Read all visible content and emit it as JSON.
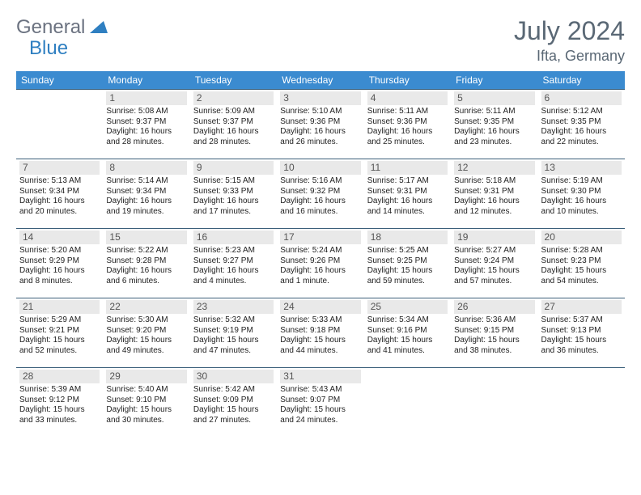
{
  "logo": {
    "part1": "General",
    "part2": "Blue"
  },
  "title": "July 2024",
  "location": "Ifta, Germany",
  "weekdays": [
    "Sunday",
    "Monday",
    "Tuesday",
    "Wednesday",
    "Thursday",
    "Friday",
    "Saturday"
  ],
  "colors": {
    "header_bg": "#3b8bd0",
    "header_text": "#ffffff",
    "cell_border": "#3b5f7a",
    "daynum_bg": "#e9e9e9",
    "logo_gray": "#6b7280",
    "logo_blue": "#2f7fc1",
    "title_color": "#5a6875"
  },
  "start_offset": 1,
  "days": [
    {
      "n": 1,
      "sr": "5:08 AM",
      "ss": "9:37 PM",
      "dl": "16 hours and 28 minutes."
    },
    {
      "n": 2,
      "sr": "5:09 AM",
      "ss": "9:37 PM",
      "dl": "16 hours and 28 minutes."
    },
    {
      "n": 3,
      "sr": "5:10 AM",
      "ss": "9:36 PM",
      "dl": "16 hours and 26 minutes."
    },
    {
      "n": 4,
      "sr": "5:11 AM",
      "ss": "9:36 PM",
      "dl": "16 hours and 25 minutes."
    },
    {
      "n": 5,
      "sr": "5:11 AM",
      "ss": "9:35 PM",
      "dl": "16 hours and 23 minutes."
    },
    {
      "n": 6,
      "sr": "5:12 AM",
      "ss": "9:35 PM",
      "dl": "16 hours and 22 minutes."
    },
    {
      "n": 7,
      "sr": "5:13 AM",
      "ss": "9:34 PM",
      "dl": "16 hours and 20 minutes."
    },
    {
      "n": 8,
      "sr": "5:14 AM",
      "ss": "9:34 PM",
      "dl": "16 hours and 19 minutes."
    },
    {
      "n": 9,
      "sr": "5:15 AM",
      "ss": "9:33 PM",
      "dl": "16 hours and 17 minutes."
    },
    {
      "n": 10,
      "sr": "5:16 AM",
      "ss": "9:32 PM",
      "dl": "16 hours and 16 minutes."
    },
    {
      "n": 11,
      "sr": "5:17 AM",
      "ss": "9:31 PM",
      "dl": "16 hours and 14 minutes."
    },
    {
      "n": 12,
      "sr": "5:18 AM",
      "ss": "9:31 PM",
      "dl": "16 hours and 12 minutes."
    },
    {
      "n": 13,
      "sr": "5:19 AM",
      "ss": "9:30 PM",
      "dl": "16 hours and 10 minutes."
    },
    {
      "n": 14,
      "sr": "5:20 AM",
      "ss": "9:29 PM",
      "dl": "16 hours and 8 minutes."
    },
    {
      "n": 15,
      "sr": "5:22 AM",
      "ss": "9:28 PM",
      "dl": "16 hours and 6 minutes."
    },
    {
      "n": 16,
      "sr": "5:23 AM",
      "ss": "9:27 PM",
      "dl": "16 hours and 4 minutes."
    },
    {
      "n": 17,
      "sr": "5:24 AM",
      "ss": "9:26 PM",
      "dl": "16 hours and 1 minute."
    },
    {
      "n": 18,
      "sr": "5:25 AM",
      "ss": "9:25 PM",
      "dl": "15 hours and 59 minutes."
    },
    {
      "n": 19,
      "sr": "5:27 AM",
      "ss": "9:24 PM",
      "dl": "15 hours and 57 minutes."
    },
    {
      "n": 20,
      "sr": "5:28 AM",
      "ss": "9:23 PM",
      "dl": "15 hours and 54 minutes."
    },
    {
      "n": 21,
      "sr": "5:29 AM",
      "ss": "9:21 PM",
      "dl": "15 hours and 52 minutes."
    },
    {
      "n": 22,
      "sr": "5:30 AM",
      "ss": "9:20 PM",
      "dl": "15 hours and 49 minutes."
    },
    {
      "n": 23,
      "sr": "5:32 AM",
      "ss": "9:19 PM",
      "dl": "15 hours and 47 minutes."
    },
    {
      "n": 24,
      "sr": "5:33 AM",
      "ss": "9:18 PM",
      "dl": "15 hours and 44 minutes."
    },
    {
      "n": 25,
      "sr": "5:34 AM",
      "ss": "9:16 PM",
      "dl": "15 hours and 41 minutes."
    },
    {
      "n": 26,
      "sr": "5:36 AM",
      "ss": "9:15 PM",
      "dl": "15 hours and 38 minutes."
    },
    {
      "n": 27,
      "sr": "5:37 AM",
      "ss": "9:13 PM",
      "dl": "15 hours and 36 minutes."
    },
    {
      "n": 28,
      "sr": "5:39 AM",
      "ss": "9:12 PM",
      "dl": "15 hours and 33 minutes."
    },
    {
      "n": 29,
      "sr": "5:40 AM",
      "ss": "9:10 PM",
      "dl": "15 hours and 30 minutes."
    },
    {
      "n": 30,
      "sr": "5:42 AM",
      "ss": "9:09 PM",
      "dl": "15 hours and 27 minutes."
    },
    {
      "n": 31,
      "sr": "5:43 AM",
      "ss": "9:07 PM",
      "dl": "15 hours and 24 minutes."
    }
  ],
  "labels": {
    "sunrise": "Sunrise: ",
    "sunset": "Sunset: ",
    "daylight": "Daylight: "
  }
}
